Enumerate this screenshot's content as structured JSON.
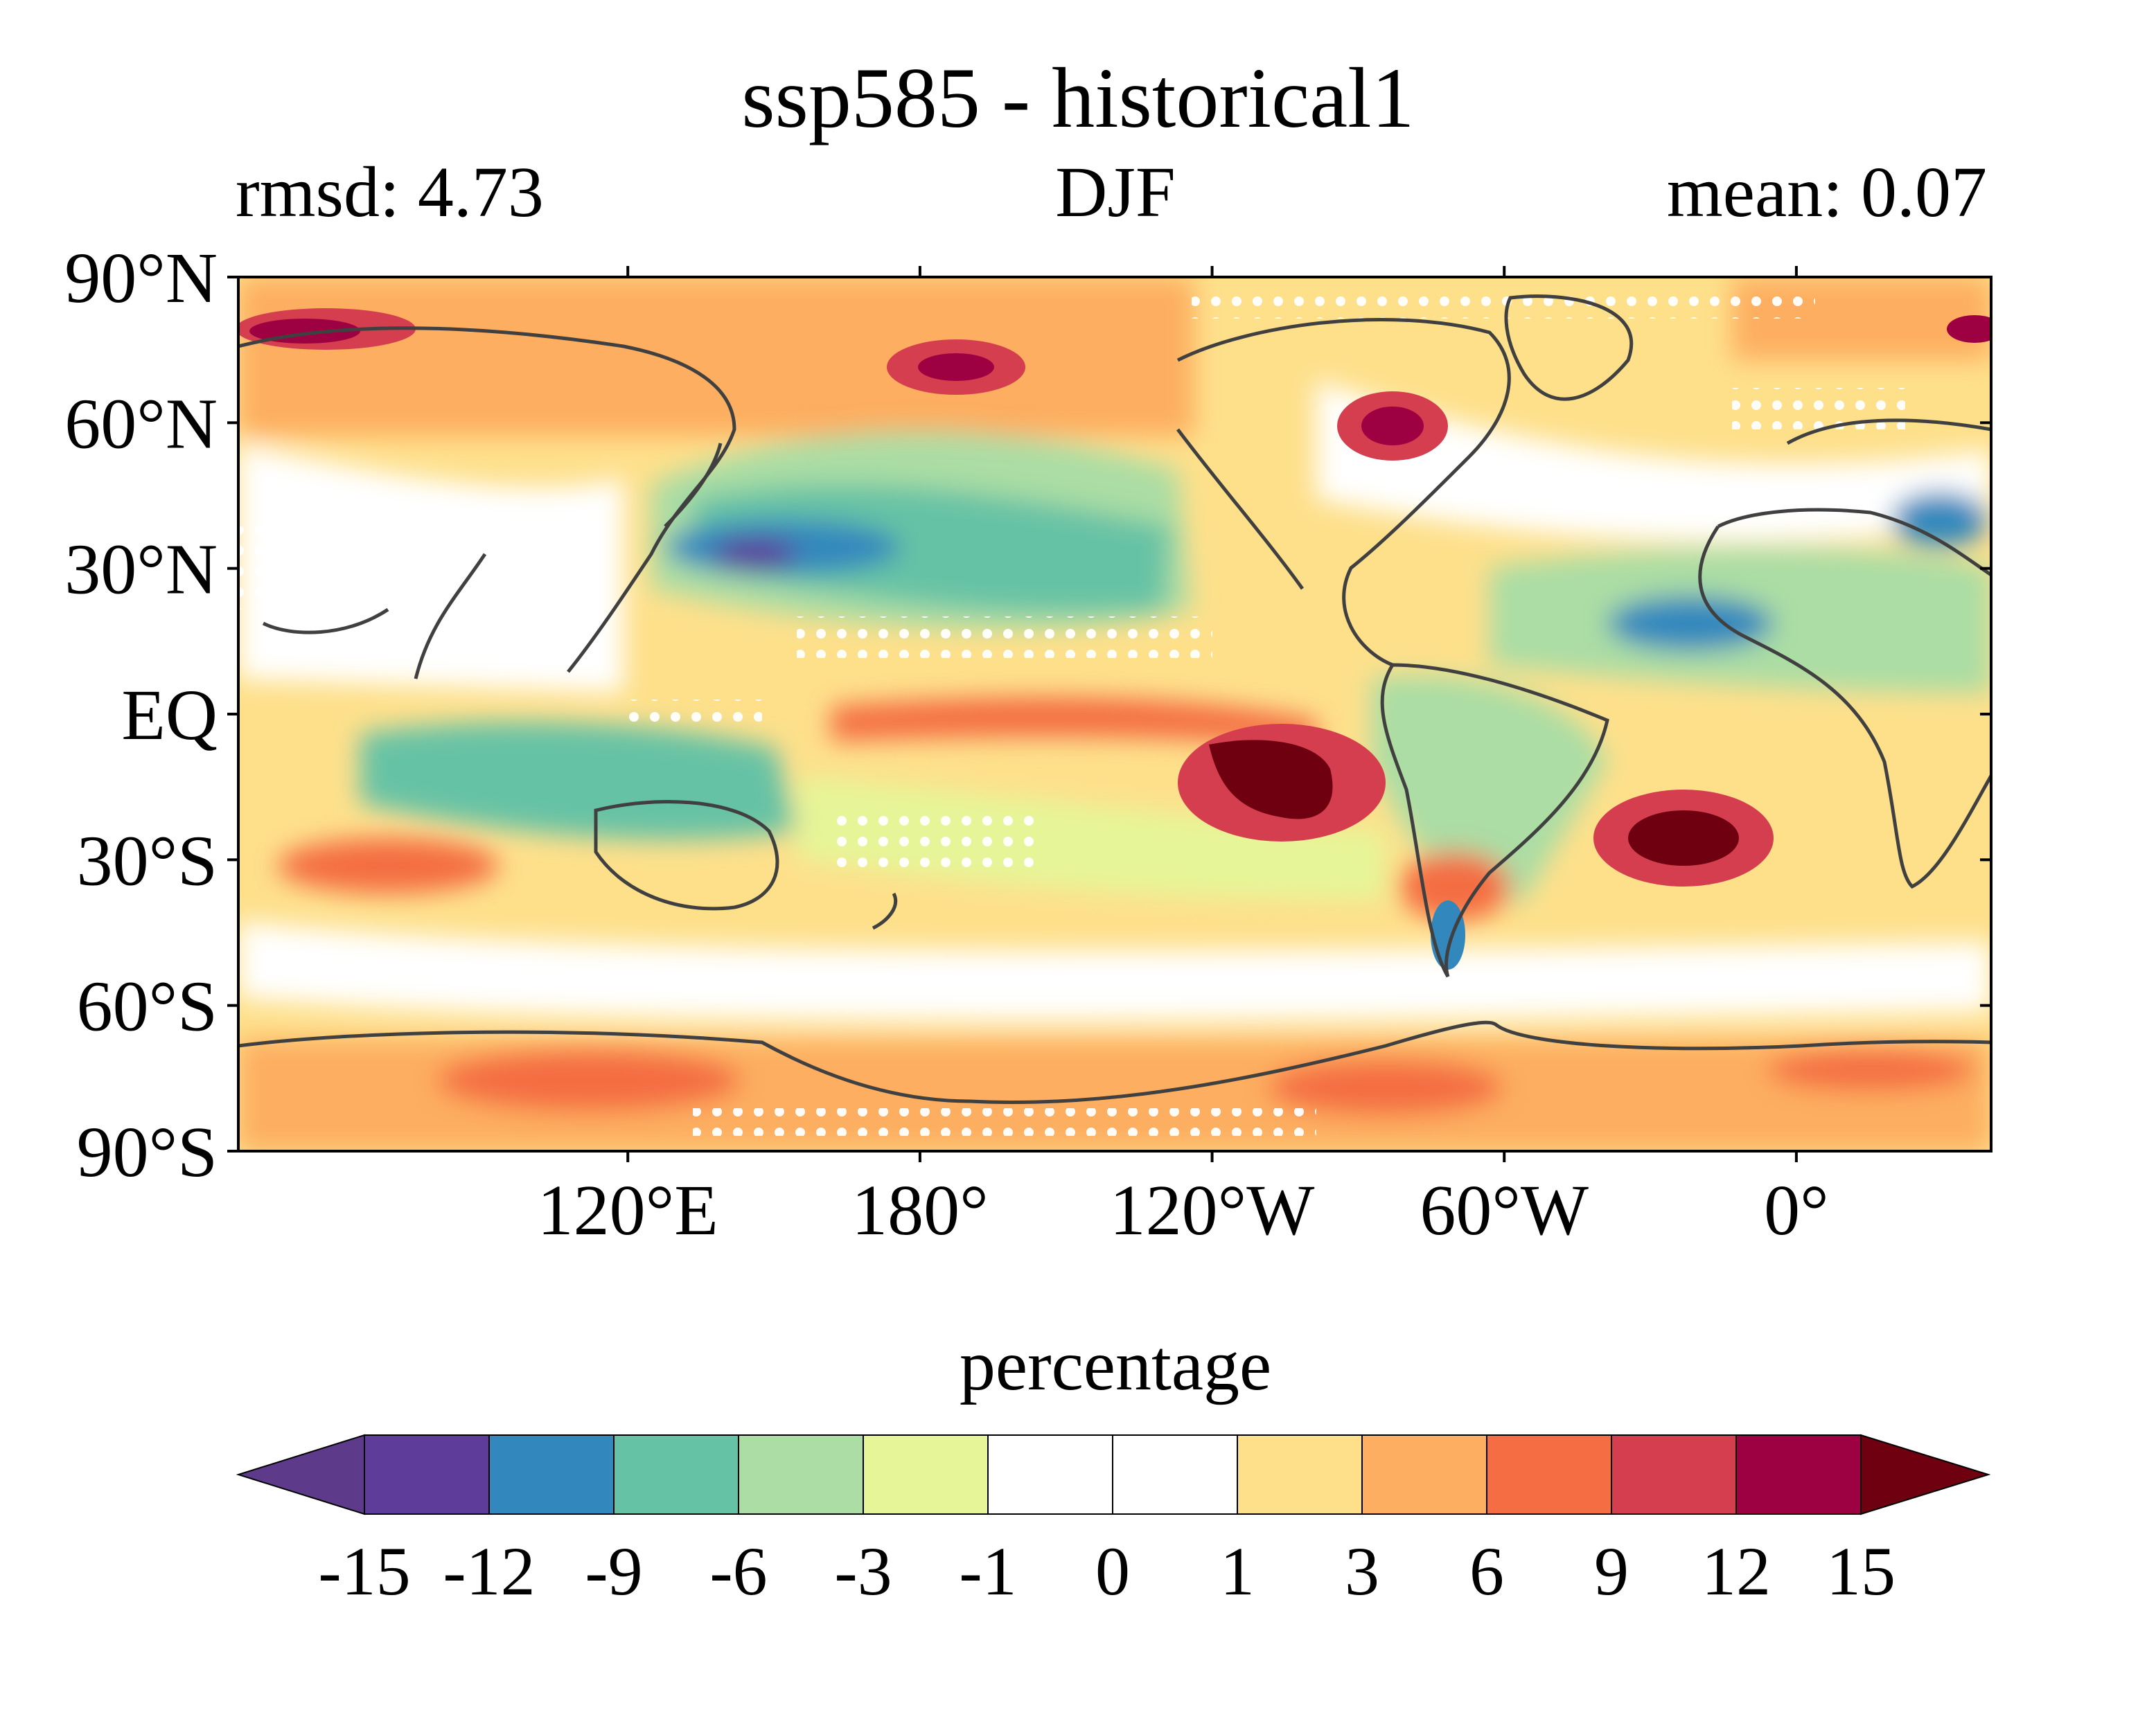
{
  "title": "ssp585 - historical1",
  "subtitle_left": "rmsd: 4.73",
  "subtitle_center": "DJF",
  "subtitle_right": "mean: 0.07",
  "map": {
    "lat_ticks": [
      "90°N",
      "60°N",
      "30°N",
      "EQ",
      "30°S",
      "60°S",
      "90°S"
    ],
    "lon_ticks": [
      "120°E",
      "180°",
      "120°W",
      "60°W",
      "0°"
    ],
    "lon_range": [
      40,
      400
    ],
    "lat_range": [
      -90,
      90
    ],
    "coastline_color": "#404040",
    "stipple_color": "#ffffff"
  },
  "colorbar": {
    "label": "percentage",
    "levels": [
      "-15",
      "-12",
      "-9",
      "-6",
      "-3",
      "-1",
      "0",
      "1",
      "3",
      "6",
      "9",
      "12",
      "15"
    ],
    "colors": [
      "#5e3c99",
      "#3288bd",
      "#66c2a5",
      "#abdda4",
      "#e6f598",
      "#ffffff",
      "#ffffff",
      "#fee08b",
      "#fdae61",
      "#f46d43",
      "#d53e4f",
      "#9e0142"
    ],
    "extend_min_color": "#5e3a8a",
    "extend_max_color": "#6e0010"
  },
  "chart_data": {
    "type": "heatmap",
    "title": "ssp585 - historical1",
    "season": "DJF",
    "rmsd": 4.73,
    "mean": 0.07,
    "units": "percentage",
    "regions_note_values": [
      {
        "lon": 245,
        "lat": -15,
        "value": 16
      },
      {
        "lon": 335,
        "lat": -27,
        "value": 16
      },
      {
        "lon": 192,
        "lat": 72,
        "value": 13
      },
      {
        "lon": 285,
        "lat": 58,
        "value": 12
      },
      {
        "lon": 65,
        "lat": 78,
        "value": 13
      },
      {
        "lon": 150,
        "lat": 33,
        "value": -12
      },
      {
        "lon": 355,
        "lat": 18,
        "value": -9
      },
      {
        "lon": 300,
        "lat": -45,
        "value": -10
      }
    ]
  }
}
